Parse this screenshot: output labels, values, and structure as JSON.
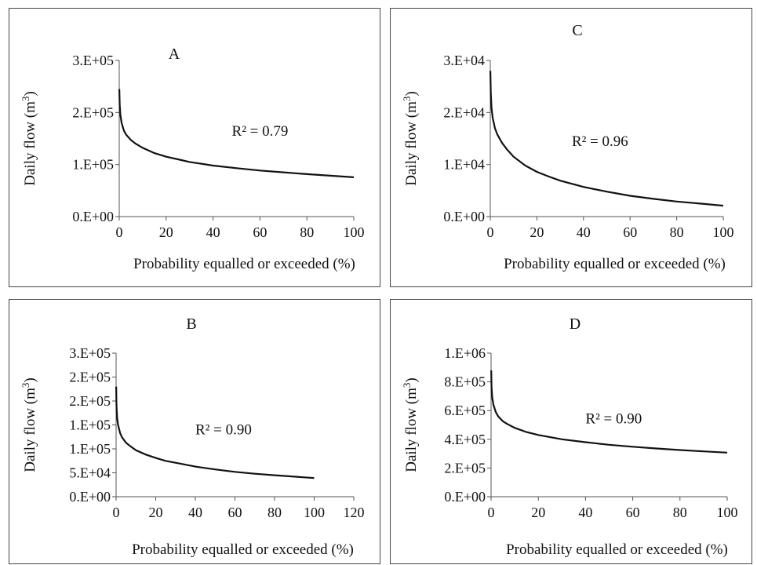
{
  "chart_data": [
    {
      "panel": "A",
      "type": "line",
      "title": "A",
      "xlabel": "Probability equalled or exceeded (%)",
      "ylabel": "Daily flow (m3)",
      "ylabel_main": "Daily flow (m",
      "ylabel_sup": "3",
      "ylabel_end": ")",
      "xlim": [
        0,
        100
      ],
      "ylim": [
        0,
        300000
      ],
      "xticks": [
        0,
        20,
        40,
        60,
        80,
        100
      ],
      "xtick_labels": [
        "0",
        "20",
        "40",
        "60",
        "80",
        "100"
      ],
      "yticks": [
        0,
        100000,
        200000,
        300000
      ],
      "ytick_labels": [
        "0.E+00",
        "1.E+05",
        "2.E+05",
        "3.E+05"
      ],
      "annotation": "R² = 0.79",
      "annotation_at": [
        48,
        155000
      ],
      "x": [
        0.05,
        0.2,
        0.5,
        1,
        2,
        3,
        5,
        7,
        10,
        15,
        20,
        25,
        30,
        40,
        50,
        60,
        70,
        80,
        90,
        100
      ],
      "y": [
        245000,
        215000,
        195000,
        180000,
        165000,
        157000,
        147000,
        140000,
        132000,
        122000,
        115000,
        110000,
        105000,
        98000,
        93000,
        88500,
        85000,
        81500,
        78500,
        75500
      ]
    },
    {
      "panel": "C",
      "type": "line",
      "title": "C",
      "xlabel": "Probability equalled or exceeded (%)",
      "ylabel": "Daily flow (m3)",
      "ylabel_main": "Daily flow (m",
      "ylabel_sup": "3",
      "ylabel_end": ")",
      "xlim": [
        0,
        100
      ],
      "ylim": [
        0,
        30000
      ],
      "xticks": [
        0,
        20,
        40,
        60,
        80,
        100
      ],
      "xtick_labels": [
        "0",
        "20",
        "40",
        "60",
        "80",
        "100"
      ],
      "yticks": [
        0,
        10000,
        20000,
        30000
      ],
      "ytick_labels": [
        "0.E+00",
        "1.E+04",
        "2.E+04",
        "3.E+04"
      ],
      "annotation": "R² = 0.96",
      "annotation_at": [
        35,
        13600
      ],
      "x": [
        0.05,
        0.2,
        0.5,
        1,
        2,
        3,
        5,
        7,
        10,
        15,
        20,
        25,
        30,
        40,
        50,
        60,
        70,
        80,
        90,
        100
      ],
      "y": [
        28000,
        24000,
        21000,
        19000,
        17000,
        15800,
        14200,
        13000,
        11500,
        9800,
        8600,
        7700,
        6900,
        5700,
        4800,
        4000,
        3400,
        2900,
        2500,
        2100
      ]
    },
    {
      "panel": "B",
      "type": "line",
      "title": "B",
      "xlabel": "Probability equalled or exceeded (%)",
      "ylabel": "Daily flow (m3)",
      "ylabel_main": "Daily flow (m",
      "ylabel_sup": "3",
      "ylabel_end": ")",
      "xlim": [
        0,
        120
      ],
      "ylim": [
        0,
        300000
      ],
      "xticks": [
        0,
        20,
        40,
        60,
        80,
        100,
        120
      ],
      "xtick_labels": [
        "0",
        "20",
        "40",
        "60",
        "80",
        "100",
        "120"
      ],
      "yticks": [
        0,
        50000,
        100000,
        150000,
        200000,
        250000,
        300000
      ],
      "ytick_labels": [
        "0.E+00",
        "5.E+04",
        "1.E+05",
        "1.E+05",
        "2.E+05",
        "2.E+05",
        "3.E+05"
      ],
      "annotation": "R² = 0.90",
      "annotation_at": [
        40,
        130000
      ],
      "x": [
        0.05,
        0.2,
        0.5,
        1,
        2,
        3,
        5,
        7,
        10,
        15,
        20,
        25,
        30,
        40,
        50,
        60,
        70,
        80,
        90,
        100
      ],
      "y": [
        230000,
        190000,
        165000,
        150000,
        133000,
        124000,
        113000,
        106000,
        97000,
        88000,
        81000,
        75000,
        71000,
        63000,
        57000,
        52000,
        48000,
        45000,
        42000,
        39000
      ]
    },
    {
      "panel": "D",
      "type": "line",
      "title": "D",
      "xlabel": "Probability equalled or exceeded (%)",
      "ylabel": "Daily flow (m3)",
      "ylabel_main": "Daily flow (m",
      "ylabel_sup": "3",
      "ylabel_end": ")",
      "xlim": [
        0,
        100
      ],
      "ylim": [
        0,
        1000000
      ],
      "xticks": [
        0,
        20,
        40,
        60,
        80,
        100
      ],
      "xtick_labels": [
        "0",
        "20",
        "40",
        "60",
        "80",
        "100"
      ],
      "yticks": [
        0,
        200000,
        400000,
        600000,
        800000,
        1000000
      ],
      "ytick_labels": [
        "0.E+00",
        "2.E+05",
        "4.E+05",
        "6.E+05",
        "8.E+05",
        "1.E+06"
      ],
      "annotation": "R² = 0.90",
      "annotation_at": [
        40,
        510000
      ],
      "x": [
        0.05,
        0.2,
        0.5,
        1,
        2,
        3,
        5,
        7,
        10,
        15,
        20,
        25,
        30,
        40,
        50,
        60,
        70,
        80,
        90,
        100
      ],
      "y": [
        880000,
        760000,
        690000,
        640000,
        590000,
        560000,
        525000,
        505000,
        480000,
        450000,
        430000,
        415000,
        400000,
        380000,
        362000,
        348000,
        336000,
        325000,
        316000,
        307000
      ]
    }
  ]
}
